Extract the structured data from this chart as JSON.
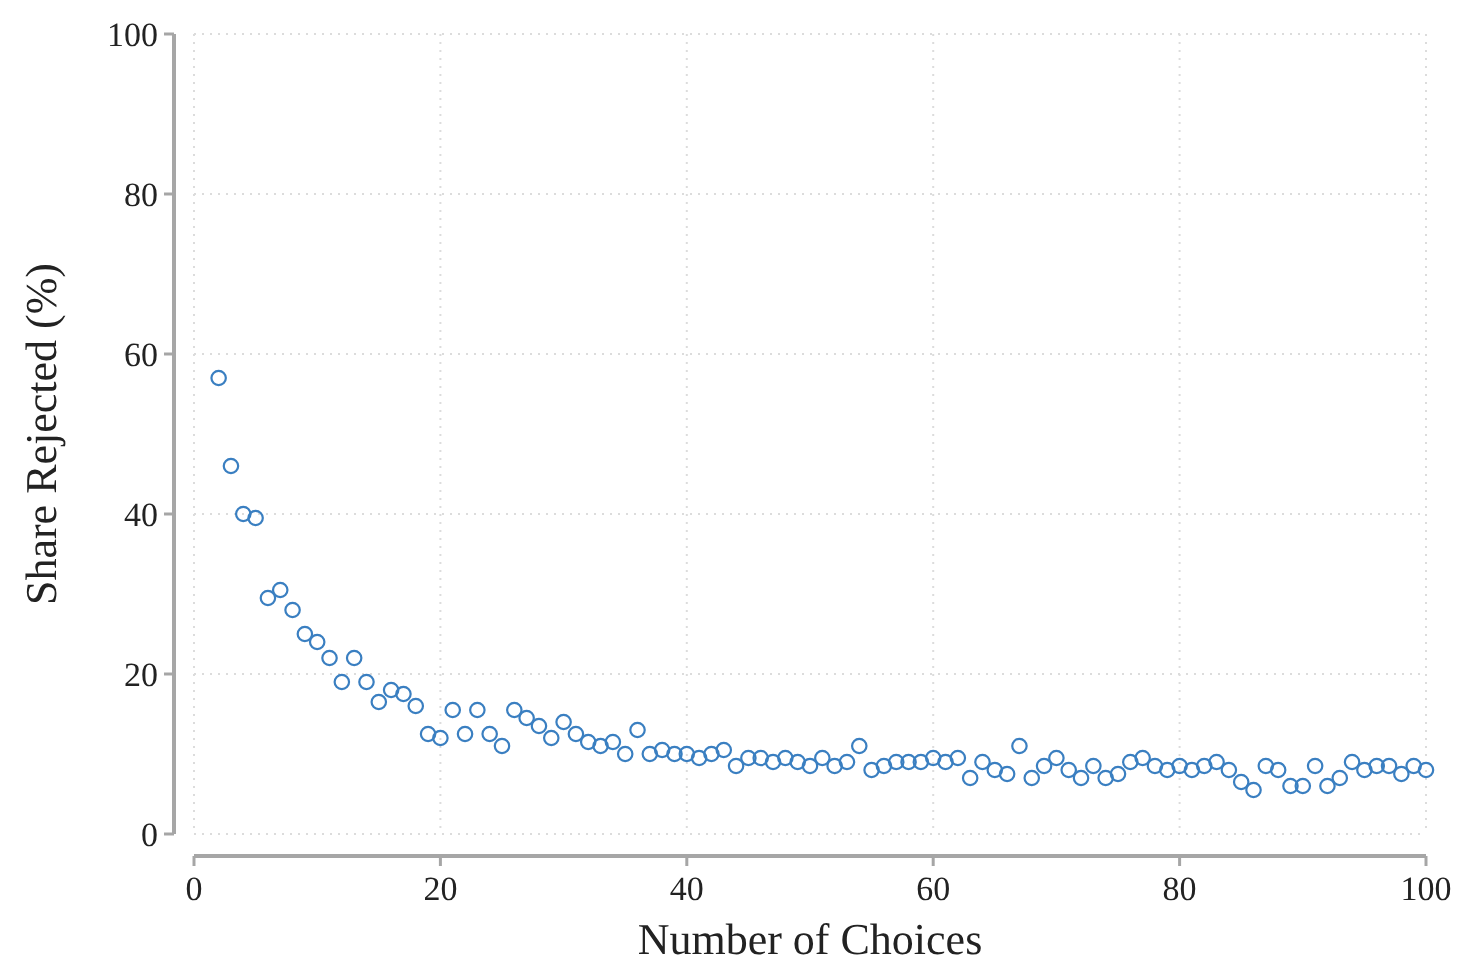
{
  "chart_data": {
    "type": "scatter",
    "xlabel": "Number of Choices",
    "ylabel": "Share Rejected (%)",
    "xlim": [
      0,
      100
    ],
    "ylim": [
      0,
      100
    ],
    "xticks": [
      0,
      20,
      40,
      60,
      80,
      100
    ],
    "yticks": [
      0,
      20,
      40,
      60,
      80,
      100
    ],
    "grid": true,
    "marker": "circle",
    "x": [
      2,
      3,
      4,
      5,
      6,
      7,
      8,
      9,
      10,
      11,
      12,
      13,
      14,
      15,
      16,
      17,
      18,
      19,
      20,
      21,
      22,
      23,
      24,
      25,
      26,
      27,
      28,
      29,
      30,
      31,
      32,
      33,
      34,
      35,
      36,
      37,
      38,
      39,
      40,
      41,
      42,
      43,
      44,
      45,
      46,
      47,
      48,
      49,
      50,
      51,
      52,
      53,
      54,
      55,
      56,
      57,
      58,
      59,
      60,
      61,
      62,
      63,
      64,
      65,
      66,
      67,
      68,
      69,
      70,
      71,
      72,
      73,
      74,
      75,
      76,
      77,
      78,
      79,
      80,
      81,
      82,
      83,
      84,
      85,
      86,
      87,
      88,
      89,
      90,
      91,
      92,
      93,
      94,
      95,
      96,
      97,
      98,
      99,
      100
    ],
    "series": [
      {
        "color": "#3a7fc1",
        "values": [
          57,
          46,
          40,
          39.5,
          29.5,
          30.5,
          28,
          25,
          24,
          22,
          19,
          22,
          19,
          16.5,
          18,
          17.5,
          16,
          12.5,
          12,
          15.5,
          12.5,
          15.5,
          12.5,
          11,
          15.5,
          14.5,
          13.5,
          12,
          14,
          12.5,
          11.5,
          11,
          11.5,
          10,
          13,
          10,
          10.5,
          10,
          10,
          9.5,
          10,
          10.5,
          8.5,
          9.5,
          9.5,
          9,
          9.5,
          9,
          8.5,
          9.5,
          8.5,
          9,
          11,
          8,
          8.5,
          9,
          9,
          9,
          9.5,
          9,
          9.5,
          7,
          9,
          8,
          7.5,
          11,
          7,
          8.5,
          9.5,
          8,
          7,
          8.5,
          7,
          7.5,
          9,
          9.5,
          8.5,
          8,
          8.5,
          8,
          8.5,
          9,
          8,
          6.5,
          5.5,
          8.5,
          8,
          6,
          6,
          8.5,
          6,
          7,
          9,
          8,
          8.5,
          8.5,
          7.5,
          8.5,
          8
        ]
      }
    ]
  }
}
